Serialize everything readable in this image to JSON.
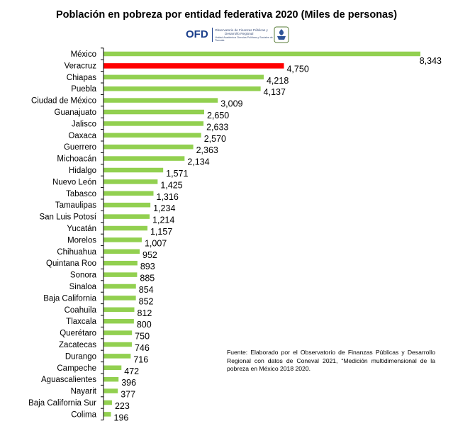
{
  "chart_data": {
    "type": "bar",
    "orientation": "horizontal",
    "title": "Población  en pobreza por entidad federativa 2020 (Miles de personas)",
    "categories": [
      "México",
      "Veracruz",
      "Chiapas",
      "Puebla",
      "Ciudad de México",
      "Guanajuato",
      "Jalisco",
      "Oaxaca",
      "Guerrero",
      "Michoacán",
      "Hidalgo",
      "Nuevo León",
      "Tabasco",
      "Tamaulipas",
      "San Luis Potosí",
      "Yucatán",
      "Morelos",
      "Chihuahua",
      "Quintana Roo",
      "Sonora",
      "Sinaloa",
      "Baja California",
      "Coahuila",
      "Tlaxcala",
      "Querétaro",
      "Zacatecas",
      "Durango",
      "Campeche",
      "Aguascalientes",
      "Nayarit",
      "Baja California Sur",
      "Colima"
    ],
    "values": [
      8343,
      4750,
      4218,
      4137,
      3009,
      2650,
      2633,
      2570,
      2363,
      2134,
      1571,
      1425,
      1316,
      1234,
      1214,
      1157,
      1007,
      952,
      893,
      885,
      854,
      852,
      812,
      800,
      750,
      746,
      716,
      472,
      396,
      377,
      223,
      196
    ],
    "value_labels": [
      "8,343",
      "4,750",
      "4,218",
      "4,137",
      "3,009",
      "2,650",
      "2,633",
      "2,570",
      "2,363",
      "2,134",
      "1,571",
      "1,425",
      "1,316",
      "1,234",
      "1,214",
      "1,157",
      "1,007",
      "952",
      "893",
      "885",
      "854",
      "852",
      "812",
      "800",
      "750",
      "746",
      "716",
      "472",
      "396",
      "377",
      "223",
      "196"
    ],
    "xlim": [
      0,
      8343
    ],
    "grid": false,
    "bar_color": "#92d050",
    "highlight_category": "Veracruz",
    "highlight_color": "#ff0000"
  },
  "logo": {
    "text": "OFD",
    "line1": "Observatorio de Finanzas Públicas y",
    "line2": "Desarrollo Regional",
    "tagline": "Unidad Académica Ciencias Políticas y Sociales de Tlaxcala",
    "color": "#1b3f8b"
  },
  "source_note": "Fuente: Elaborado por el Observatorio de Finanzas Públicas y Desarrollo Regional con datos de Coneval 2021, “Medición multidimensional de la pobreza en México 2018  2020."
}
